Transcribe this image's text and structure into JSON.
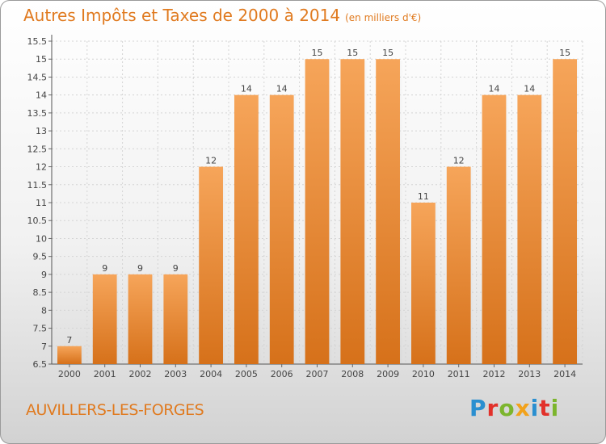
{
  "header": {
    "title": "Autres Impôts et Taxes de 2000 à 2014",
    "unit": "(en milliers d'€)"
  },
  "footer": {
    "commune": "AUVILLERS-LES-FORGES",
    "logo": [
      "P",
      "r",
      "o",
      "x",
      "i",
      "t",
      "i"
    ]
  },
  "colors": {
    "accent": "#e07a1f",
    "bar_top": "#f6a55a",
    "bar_bottom": "#d6711a"
  },
  "chart_data": {
    "type": "bar",
    "categories": [
      "2000",
      "2001",
      "2002",
      "2003",
      "2004",
      "2005",
      "2006",
      "2007",
      "2008",
      "2009",
      "2010",
      "2011",
      "2012",
      "2013",
      "2014"
    ],
    "values": [
      7,
      9,
      9,
      9,
      12,
      14,
      14,
      15,
      15,
      15,
      11,
      12,
      14,
      14,
      15
    ],
    "data_labels": [
      "7",
      "9",
      "9",
      "9",
      "12",
      "14",
      "14",
      "15",
      "15",
      "15",
      "11",
      "12",
      "14",
      "14",
      "15"
    ],
    "ylim": [
      6.5,
      15.5
    ],
    "yticks": [
      6.5,
      7,
      7.5,
      8,
      8.5,
      9,
      9.5,
      10,
      10.5,
      11,
      11.5,
      12,
      12.5,
      13,
      13.5,
      14,
      14.5,
      15,
      15.5
    ],
    "ytick_labels": [
      "6.5",
      "7",
      "7.5",
      "8",
      "8.5",
      "9",
      "9.5",
      "10",
      "10.5",
      "11",
      "11.5",
      "12",
      "12.5",
      "13",
      "13.5",
      "14",
      "14.5",
      "15",
      "15.5"
    ],
    "grid": true
  }
}
